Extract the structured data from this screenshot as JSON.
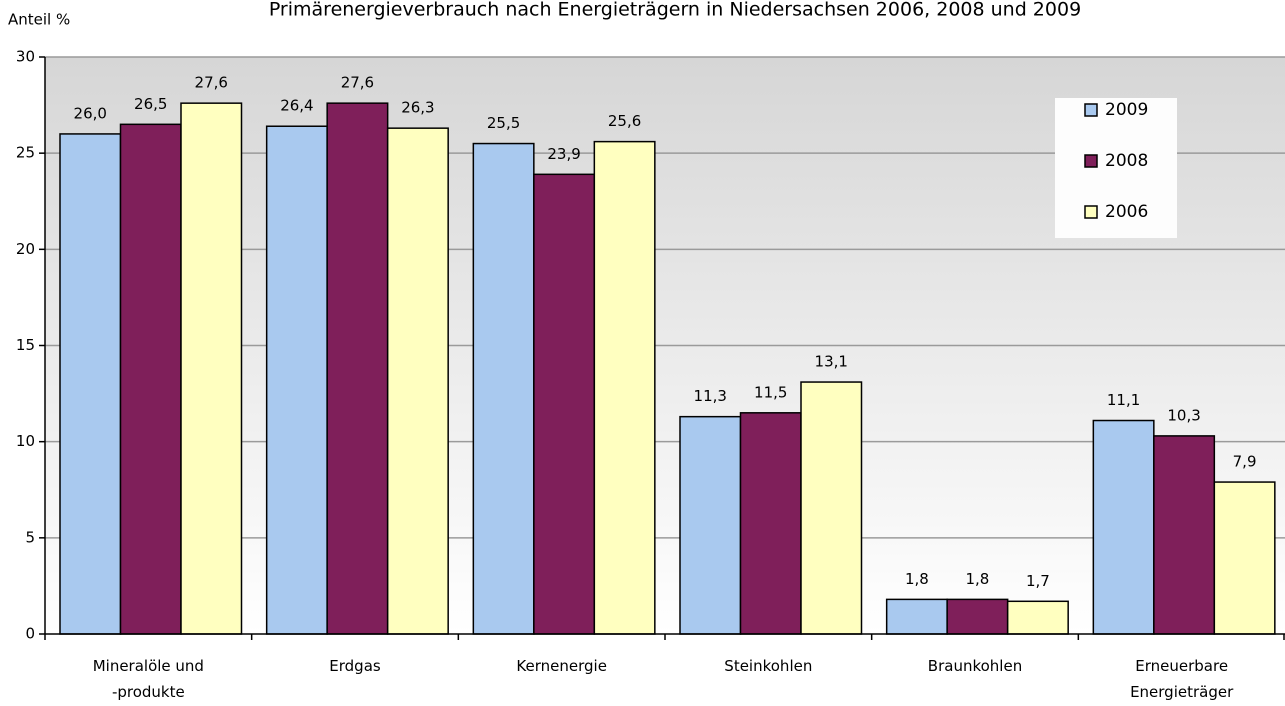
{
  "chart_data": {
    "type": "bar",
    "title": "Primärenergieverbrauch nach Energieträgern in Niedersachsen 2006, 2008 und 2009",
    "ylabel": "Anteil %",
    "categories": [
      "Mineralöle und\n-produkte",
      "Erdgas",
      "Kernenergie",
      "Steinkohlen",
      "Braunkohlen",
      "Erneuerbare\nEnergieträger"
    ],
    "series": [
      {
        "name": "2009",
        "color": "#a9c9ef",
        "values": [
          26.0,
          26.4,
          25.5,
          11.3,
          1.8,
          11.1
        ],
        "value_labels": [
          "26,0",
          "26,4",
          "25,5",
          "11,3",
          "1,8",
          "11,1"
        ]
      },
      {
        "name": "2008",
        "color": "#7f1f5a",
        "values": [
          26.5,
          27.6,
          23.9,
          11.5,
          1.8,
          10.3
        ],
        "value_labels": [
          "26,5",
          "27,6",
          "23,9",
          "11,5",
          "1,8",
          "10,3"
        ]
      },
      {
        "name": "2006",
        "color": "#ffffc0",
        "values": [
          27.6,
          26.3,
          25.6,
          13.1,
          1.7,
          7.9
        ],
        "value_labels": [
          "27,6",
          "26,3",
          "25,6",
          "13,1",
          "1,7",
          "7,9"
        ]
      }
    ],
    "ylim": [
      0,
      30
    ],
    "yticks": [
      0,
      5,
      10,
      15,
      20,
      25,
      30
    ],
    "grid": true,
    "legend": "upper right"
  }
}
